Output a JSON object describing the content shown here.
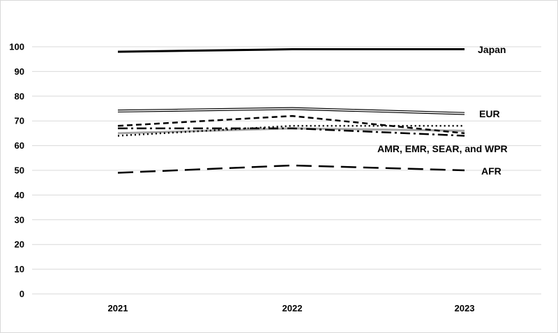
{
  "chart_data": {
    "type": "line",
    "title": "",
    "xlabel": "",
    "ylabel": "",
    "categories": [
      "2021",
      "2022",
      "2023"
    ],
    "ylim": [
      0,
      100
    ],
    "yticks": [
      0,
      10,
      20,
      30,
      40,
      50,
      60,
      70,
      80,
      90,
      100
    ],
    "grid": true,
    "legend": "none",
    "series": [
      {
        "name": "Japan",
        "values": [
          98,
          99,
          99
        ],
        "style": "solid-thick",
        "color": "#000000"
      },
      {
        "name": "EUR",
        "values": [
          74,
          75,
          73
        ],
        "style": "double",
        "color": "#000000"
      },
      {
        "values": [
          68,
          72,
          65
        ],
        "style": "short-dash",
        "color": "#000000"
      },
      {
        "values": [
          64,
          68,
          68
        ],
        "style": "dotted",
        "color": "#000000"
      },
      {
        "values": [
          67,
          67,
          64
        ],
        "style": "dash-dot",
        "color": "#000000"
      },
      {
        "values": [
          65,
          67,
          66
        ],
        "style": "solid-gray",
        "color": "#a6a6a6"
      },
      {
        "name": "AFR",
        "values": [
          49,
          52,
          50
        ],
        "style": "long-dash",
        "color": "#000000"
      }
    ],
    "annotations": [
      {
        "text": "Japan"
      },
      {
        "text": "EUR"
      },
      {
        "text": "AMR, EMR, SEAR, and WPR"
      },
      {
        "text": "AFR"
      }
    ]
  }
}
